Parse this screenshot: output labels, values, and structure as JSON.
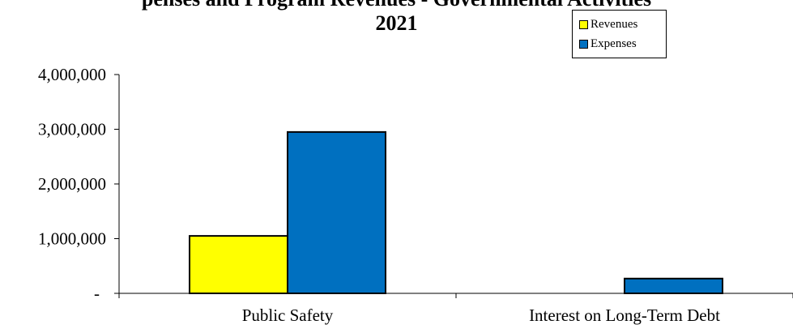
{
  "chart_data": {
    "type": "bar",
    "title_lines": [
      "penses and Program Revenues - Governmental Activities",
      "2021"
    ],
    "categories": [
      "Public Safety",
      "Interest on Long-Term Debt"
    ],
    "series": [
      {
        "name": "Revenues",
        "values": [
          1050000,
          0
        ],
        "color": "#ffff00"
      },
      {
        "name": "Expenses",
        "values": [
          2950000,
          270000
        ],
        "color": "#0070c0"
      }
    ],
    "ylim": [
      0,
      4000000
    ],
    "yticks": [
      0,
      1000000,
      2000000,
      3000000,
      4000000
    ],
    "ytick_labels": [
      "-",
      "1,000,000",
      "2,000,000",
      "3,000,000",
      "4,000,000"
    ],
    "grid": false,
    "legend_position": "top-right"
  }
}
